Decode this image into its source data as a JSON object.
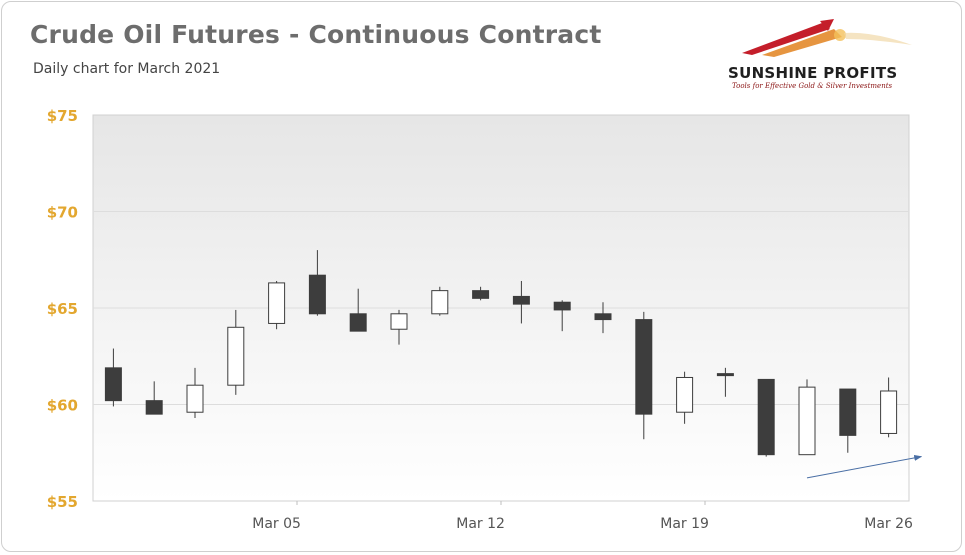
{
  "header": {
    "title": "Crude Oil Futures - Continuous Contract",
    "subtitle": "Daily chart for March 2021"
  },
  "logo": {
    "name": "SUNSHINE PROFITS",
    "tagline": "Tools for Effective Gold & Silver Investments",
    "icon": "swoosh-logo-icon"
  },
  "colors": {
    "axis_label": "#e3a72f",
    "bull_fill": "#ffffff",
    "bear_fill": "#3d3d3d",
    "candle_border": "#3d3d3d",
    "gridline": "#dddddd",
    "arrow": "#4a6fa5"
  },
  "chart_data": {
    "type": "candlestick",
    "title": "Crude Oil Futures - Continuous Contract",
    "subtitle": "Daily chart for March 2021",
    "ylim": [
      55,
      75
    ],
    "yticks": [
      55,
      60,
      65,
      70,
      75
    ],
    "ytick_labels": [
      "$55",
      "$60",
      "$65",
      "$70",
      "$75"
    ],
    "xtick_labels": [
      {
        "label": "Mar 05",
        "index": 4
      },
      {
        "label": "Mar 12",
        "index": 9
      },
      {
        "label": "Mar 19",
        "index": 14
      },
      {
        "label": "Mar 26",
        "index": 19
      }
    ],
    "grid": true,
    "candles": [
      {
        "open": 61.9,
        "high": 62.9,
        "low": 59.9,
        "close": 60.2
      },
      {
        "open": 60.2,
        "high": 61.2,
        "low": 59.5,
        "close": 59.5
      },
      {
        "open": 59.6,
        "high": 61.9,
        "low": 59.3,
        "close": 61.0
      },
      {
        "open": 61.0,
        "high": 64.9,
        "low": 60.5,
        "close": 64.0
      },
      {
        "open": 64.2,
        "high": 66.4,
        "low": 63.9,
        "close": 66.3
      },
      {
        "open": 66.7,
        "high": 68.0,
        "low": 64.6,
        "close": 64.7
      },
      {
        "open": 64.7,
        "high": 66.0,
        "low": 63.8,
        "close": 63.8
      },
      {
        "open": 63.9,
        "high": 64.9,
        "low": 63.1,
        "close": 64.7
      },
      {
        "open": 64.7,
        "high": 66.1,
        "low": 64.6,
        "close": 65.9
      },
      {
        "open": 65.9,
        "high": 66.1,
        "low": 65.4,
        "close": 65.5
      },
      {
        "open": 65.6,
        "high": 66.4,
        "low": 64.2,
        "close": 65.2
      },
      {
        "open": 65.3,
        "high": 65.4,
        "low": 63.8,
        "close": 64.9
      },
      {
        "open": 64.7,
        "high": 65.3,
        "low": 63.7,
        "close": 64.4
      },
      {
        "open": 64.4,
        "high": 64.8,
        "low": 58.2,
        "close": 59.5
      },
      {
        "open": 59.6,
        "high": 61.7,
        "low": 59.0,
        "close": 61.4
      },
      {
        "open": 61.6,
        "high": 61.9,
        "low": 60.4,
        "close": 61.5
      },
      {
        "open": 61.3,
        "high": 61.3,
        "low": 57.3,
        "close": 57.4
      },
      {
        "open": 57.4,
        "high": 61.3,
        "low": 57.4,
        "close": 60.9
      },
      {
        "open": 60.8,
        "high": 60.8,
        "low": 57.5,
        "close": 58.4
      },
      {
        "open": 58.5,
        "high": 61.4,
        "low": 58.3,
        "close": 60.7
      }
    ],
    "annotations": [
      {
        "type": "arrow",
        "from": {
          "index": 17,
          "value": 56.2
        },
        "to": {
          "index": 19.8,
          "value": 57.3
        }
      }
    ]
  }
}
